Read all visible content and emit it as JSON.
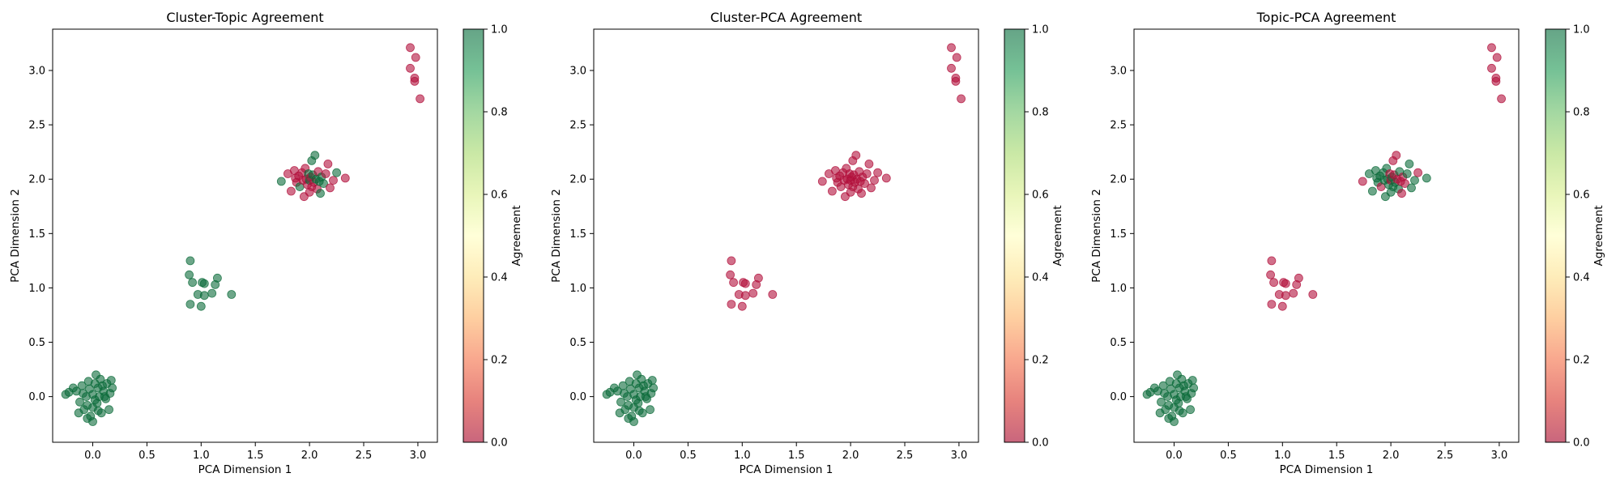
{
  "chart_data": [
    {
      "type": "scatter",
      "title": "Cluster-Topic Agreement",
      "xlabel": "PCA Dimension 1",
      "ylabel": "PCA Dimension 2",
      "xlim": [
        -0.37,
        3.18
      ],
      "ylim": [
        -0.42,
        3.38
      ],
      "xticks": [
        "0.0",
        "0.5",
        "1.0",
        "1.5",
        "2.0",
        "2.5",
        "3.0"
      ],
      "yticks": [
        "0.0",
        "0.5",
        "1.0",
        "1.5",
        "2.0",
        "2.5",
        "3.0"
      ],
      "colorbar": {
        "label": "Agreement",
        "ticks": [
          "0.0",
          "0.2",
          "0.4",
          "0.6",
          "0.8",
          "1.0"
        ]
      },
      "clusters": [
        {
          "center": [
            0.0,
            0.0
          ],
          "agreement": 1,
          "points": [
            [
              -0.25,
              0.02
            ],
            [
              -0.22,
              0.04
            ],
            [
              -0.15,
              0.05
            ],
            [
              -0.12,
              -0.05
            ],
            [
              -0.1,
              0.1
            ],
            [
              -0.08,
              -0.12
            ],
            [
              -0.06,
              0.0
            ],
            [
              -0.05,
              -0.08
            ],
            [
              -0.03,
              0.07
            ],
            [
              -0.02,
              -0.18
            ],
            [
              0.0,
              0.02
            ],
            [
              0.0,
              -0.1
            ],
            [
              0.02,
              0.12
            ],
            [
              0.02,
              -0.03
            ],
            [
              0.03,
              0.2
            ],
            [
              0.04,
              -0.06
            ],
            [
              0.05,
              0.08
            ],
            [
              0.06,
              0.0
            ],
            [
              0.07,
              0.16
            ],
            [
              0.08,
              -0.15
            ],
            [
              0.1,
              0.05
            ],
            [
              0.12,
              -0.02
            ],
            [
              0.13,
              0.12
            ],
            [
              0.15,
              -0.12
            ],
            [
              0.17,
              0.15
            ],
            [
              0.18,
              0.08
            ],
            [
              -0.13,
              -0.15
            ],
            [
              -0.18,
              0.08
            ],
            [
              0.0,
              -0.23
            ],
            [
              -0.04,
              0.14
            ],
            [
              0.09,
              0.1
            ],
            [
              -0.09,
              0.03
            ],
            [
              0.05,
              -0.13
            ],
            [
              0.11,
              0.0
            ],
            [
              -0.05,
              -0.2
            ],
            [
              0.16,
              0.03
            ]
          ]
        },
        {
          "center": [
            1.0,
            1.0
          ],
          "agreement": 1,
          "points": [
            [
              0.9,
              1.25
            ],
            [
              0.89,
              1.12
            ],
            [
              0.92,
              1.05
            ],
            [
              1.01,
              1.05
            ],
            [
              1.03,
              1.04
            ],
            [
              1.15,
              1.09
            ],
            [
              1.13,
              1.03
            ],
            [
              0.97,
              0.94
            ],
            [
              1.03,
              0.93
            ],
            [
              1.1,
              0.95
            ],
            [
              1.28,
              0.94
            ],
            [
              0.9,
              0.85
            ],
            [
              1.0,
              0.83
            ]
          ]
        },
        {
          "center": [
            2.0,
            2.0
          ],
          "agreement": 0,
          "points": [
            [
              1.74,
              1.98
            ],
            [
              1.8,
              2.05
            ],
            [
              1.83,
              1.89
            ],
            [
              1.86,
              2.08
            ],
            [
              1.88,
              1.97
            ],
            [
              1.9,
              2.03
            ],
            [
              1.91,
              1.93
            ],
            [
              1.93,
              2.06
            ],
            [
              1.94,
              1.99
            ],
            [
              1.95,
              1.84
            ],
            [
              1.96,
              2.1
            ],
            [
              1.97,
              2.0
            ],
            [
              1.98,
              1.95
            ],
            [
              1.99,
              2.05
            ],
            [
              2.0,
              1.99
            ],
            [
              2.01,
              2.02
            ],
            [
              2.02,
              1.93
            ],
            [
              2.02,
              2.17
            ],
            [
              2.03,
              2.04
            ],
            [
              2.04,
              1.97
            ],
            [
              2.05,
              2.22
            ],
            [
              2.06,
              2.0
            ],
            [
              2.07,
              1.91
            ],
            [
              2.08,
              2.07
            ],
            [
              2.09,
              1.98
            ],
            [
              2.1,
              1.87
            ],
            [
              2.11,
              2.02
            ],
            [
              2.13,
              1.96
            ],
            [
              2.15,
              2.05
            ],
            [
              2.17,
              2.14
            ],
            [
              2.19,
              1.92
            ],
            [
              2.22,
              1.99
            ],
            [
              2.25,
              2.06
            ],
            [
              2.33,
              2.01
            ],
            [
              1.87,
              2.01
            ],
            [
              2.0,
              1.88
            ]
          ]
        },
        {
          "center": [
            3.0,
            3.0
          ],
          "agreement": 0,
          "points": [
            [
              2.93,
              3.21
            ],
            [
              2.98,
              3.12
            ],
            [
              2.93,
              3.02
            ],
            [
              2.97,
              2.93
            ],
            [
              2.97,
              2.9
            ],
            [
              3.02,
              2.74
            ]
          ]
        }
      ],
      "overrides": [
        {
          "cluster": 2,
          "agreement": 1,
          "points": [
            [
              1.74,
              1.98
            ],
            [
              1.91,
              1.93
            ],
            [
              1.99,
              2.05
            ],
            [
              2.02,
              2.17
            ],
            [
              2.05,
              2.22
            ],
            [
              2.06,
              2.0
            ],
            [
              2.09,
              1.98
            ],
            [
              2.13,
              1.96
            ],
            [
              2.25,
              2.06
            ],
            [
              2.11,
              2.02
            ],
            [
              2.0,
              1.99
            ],
            [
              2.03,
              2.04
            ],
            [
              2.1,
              1.87
            ]
          ]
        }
      ]
    },
    {
      "type": "scatter",
      "title": "Cluster-PCA Agreement",
      "xlabel": "PCA Dimension 1",
      "ylabel": "PCA Dimension 2",
      "xlim": [
        -0.37,
        3.18
      ],
      "ylim": [
        -0.42,
        3.38
      ],
      "xticks": [
        "0.0",
        "0.5",
        "1.0",
        "1.5",
        "2.0",
        "2.5",
        "3.0"
      ],
      "yticks": [
        "0.0",
        "0.5",
        "1.0",
        "1.5",
        "2.0",
        "2.5",
        "3.0"
      ],
      "colorbar": {
        "label": "Agreement",
        "ticks": [
          "0.0",
          "0.2",
          "0.4",
          "0.6",
          "0.8",
          "1.0"
        ]
      },
      "cluster_agreement": [
        1,
        0,
        0,
        0
      ]
    },
    {
      "type": "scatter",
      "title": "Topic-PCA Agreement",
      "xlabel": "PCA Dimension 1",
      "ylabel": "PCA Dimension 2",
      "xlim": [
        -0.37,
        3.18
      ],
      "ylim": [
        -0.42,
        3.38
      ],
      "xticks": [
        "0.0",
        "0.5",
        "1.0",
        "1.5",
        "2.0",
        "2.5",
        "3.0"
      ],
      "yticks": [
        "0.0",
        "0.5",
        "1.0",
        "1.5",
        "2.0",
        "2.5",
        "3.0"
      ],
      "colorbar": {
        "label": "Agreement",
        "ticks": [
          "0.0",
          "0.2",
          "0.4",
          "0.6",
          "0.8",
          "1.0"
        ]
      },
      "cluster_agreement": [
        1,
        0,
        1,
        0
      ],
      "cluster2_mismatch_points": [
        [
          1.74,
          1.98
        ],
        [
          1.91,
          1.93
        ],
        [
          1.99,
          2.05
        ],
        [
          2.02,
          2.17
        ],
        [
          2.05,
          2.22
        ],
        [
          2.06,
          2.0
        ],
        [
          2.09,
          1.98
        ],
        [
          2.13,
          1.96
        ],
        [
          2.25,
          2.06
        ],
        [
          2.11,
          2.02
        ],
        [
          2.0,
          1.99
        ],
        [
          2.03,
          2.04
        ],
        [
          2.1,
          1.87
        ]
      ]
    }
  ],
  "colors": {
    "agree": "#0b6b3a",
    "disagree": "#b2103c",
    "colormap": [
      "#a50026",
      "#d73027",
      "#f46d43",
      "#fdae61",
      "#fee08b",
      "#ffffbf",
      "#d9ef8b",
      "#a6d96a",
      "#66bd63",
      "#1a9850",
      "#006837"
    ],
    "point_alpha": 0.6
  }
}
